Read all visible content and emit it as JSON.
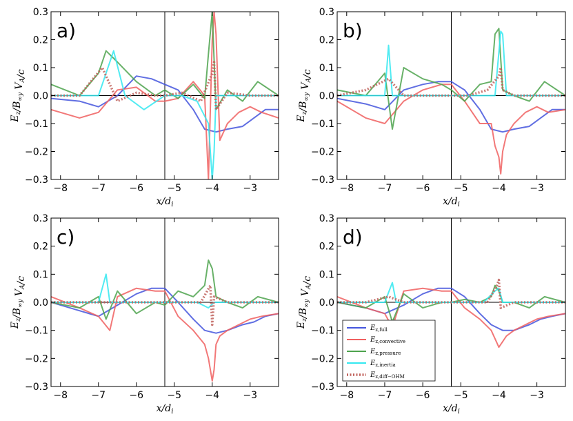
{
  "colors": {
    "full": "#4455dd",
    "convective": "#f06060",
    "pressure": "#4da34d",
    "inertia": "#33e8f0",
    "diff_ohm": "#c0605a"
  },
  "chart_data": [
    {
      "type": "line",
      "panel_label": "a)",
      "xlabel": "x/d_i",
      "ylabel": "E_z/B_∞y V_A/c",
      "xlim": [
        -8.25,
        -2.25
      ],
      "ylim": [
        -0.3,
        0.3
      ],
      "xticks": [
        "−8",
        "−7",
        "−6",
        "−5",
        "−4",
        "−3"
      ],
      "yticks": [
        "−0.3",
        "−0.2",
        "−0.1",
        "0.0",
        "0.1",
        "0.2",
        "0.3"
      ],
      "vline_x": -5.25,
      "series": [
        {
          "name": "E_z,full",
          "x": [
            -8.25,
            -7.5,
            -7,
            -6.5,
            -6,
            -5.6,
            -5.25,
            -4.9,
            -4.5,
            -4.2,
            -3.9,
            -3.6,
            -3.2,
            -2.9,
            -2.6,
            -2.25
          ],
          "values": [
            -0.01,
            -0.02,
            -0.04,
            0.0,
            0.07,
            0.06,
            0.04,
            0.02,
            -0.05,
            -0.12,
            -0.13,
            -0.12,
            -0.11,
            -0.08,
            -0.05,
            -0.05
          ]
        },
        {
          "name": "E_z,convective",
          "x": [
            -8.25,
            -7.5,
            -7,
            -6.5,
            -6,
            -5.5,
            -5.25,
            -4.9,
            -4.5,
            -4.2,
            -4.1,
            -4,
            -3.95,
            -3.9,
            -3.8,
            -3.6,
            -3.3,
            -3,
            -2.7,
            -2.25
          ],
          "values": [
            -0.05,
            -0.08,
            -0.06,
            0.02,
            0.03,
            -0.02,
            -0.02,
            -0.01,
            0.05,
            0.0,
            -0.3,
            0.2,
            0.3,
            0.22,
            -0.16,
            -0.1,
            -0.06,
            -0.04,
            -0.06,
            -0.08
          ]
        },
        {
          "name": "E_z,pressure",
          "x": [
            -8.25,
            -7.5,
            -7,
            -6.8,
            -6.5,
            -6,
            -5.5,
            -5.25,
            -4.9,
            -4.5,
            -4.2,
            -4.1,
            -4,
            -3.9,
            -3.6,
            -3.2,
            -2.8,
            -2.25
          ],
          "values": [
            0.04,
            0.0,
            0.08,
            0.16,
            0.12,
            0.05,
            0.0,
            0.02,
            -0.01,
            0.04,
            -0.01,
            0.15,
            0.3,
            -0.05,
            0.02,
            -0.02,
            0.05,
            0.0
          ]
        },
        {
          "name": "E_z,inertia",
          "x": [
            -8.25,
            -7,
            -6.6,
            -6.3,
            -5.8,
            -5.25,
            -4.8,
            -4.4,
            -4.1,
            -4,
            -3.95,
            -3.9,
            -3.6,
            -3,
            -2.25
          ],
          "values": [
            0.0,
            0.0,
            0.16,
            0.0,
            -0.05,
            0.0,
            0.0,
            -0.02,
            -0.1,
            -0.3,
            -0.2,
            0.0,
            0.0,
            0.0,
            0.0
          ]
        },
        {
          "name": "E_z,diff−OHM",
          "x": [
            -8.25,
            -7.5,
            -6.9,
            -6.5,
            -6,
            -5.5,
            -5.25,
            -4.8,
            -4.3,
            -4,
            -3.95,
            -3.9,
            -3.6,
            -3,
            -2.25
          ],
          "values": [
            0.0,
            0.0,
            0.1,
            -0.02,
            0.01,
            0.0,
            0.0,
            0.01,
            -0.02,
            0.08,
            0.12,
            -0.05,
            0.01,
            0.0,
            0.0
          ]
        }
      ]
    },
    {
      "type": "line",
      "panel_label": "b)",
      "xlabel": "x/d_i",
      "ylabel": "E_z/B_∞y V_A/c",
      "xlim": [
        -8.25,
        -2.25
      ],
      "ylim": [
        -0.3,
        0.3
      ],
      "xticks": [
        "−8",
        "−7",
        "−6",
        "−5",
        "−4",
        "−3"
      ],
      "yticks": [
        "−0.3",
        "−0.2",
        "−0.1",
        "0.0",
        "0.1",
        "0.2",
        "0.3"
      ],
      "vline_x": -5.25,
      "series": [
        {
          "name": "E_z,full",
          "x": [
            -8.25,
            -7.5,
            -7,
            -6.5,
            -6,
            -5.6,
            -5.25,
            -4.9,
            -4.5,
            -4.2,
            -3.9,
            -3.6,
            -3.2,
            -2.9,
            -2.6,
            -2.25
          ],
          "values": [
            -0.01,
            -0.03,
            -0.05,
            0.02,
            0.04,
            0.05,
            0.05,
            0.02,
            -0.05,
            -0.12,
            -0.13,
            -0.12,
            -0.11,
            -0.08,
            -0.05,
            -0.05
          ]
        },
        {
          "name": "E_z,convective",
          "x": [
            -8.25,
            -7.5,
            -7,
            -6.5,
            -6,
            -5.5,
            -5.25,
            -4.9,
            -4.5,
            -4.2,
            -4.1,
            -4,
            -3.95,
            -3.9,
            -3.8,
            -3.6,
            -3.3,
            -3,
            -2.7,
            -2.25
          ],
          "values": [
            -0.02,
            -0.08,
            -0.1,
            -0.02,
            0.02,
            0.04,
            0.04,
            -0.02,
            -0.1,
            -0.1,
            -0.18,
            -0.22,
            -0.28,
            -0.2,
            -0.14,
            -0.1,
            -0.06,
            -0.04,
            -0.06,
            -0.05
          ]
        },
        {
          "name": "E_z,pressure",
          "x": [
            -8.25,
            -7.5,
            -7,
            -6.8,
            -6.5,
            -6,
            -5.5,
            -5.25,
            -4.9,
            -4.5,
            -4.2,
            -4.1,
            -4,
            -3.9,
            -3.6,
            -3.2,
            -2.8,
            -2.25
          ],
          "values": [
            0.02,
            0.0,
            0.08,
            -0.12,
            0.1,
            0.06,
            0.04,
            0.02,
            -0.02,
            0.04,
            0.05,
            0.22,
            0.24,
            0.02,
            0.0,
            -0.02,
            0.05,
            0.0
          ]
        },
        {
          "name": "E_z,inertia",
          "x": [
            -8.25,
            -7,
            -6.9,
            -6.8,
            -6.3,
            -5.8,
            -5.25,
            -4.8,
            -4.4,
            -4.1,
            -3.95,
            -3.9,
            -3.8,
            -3.6,
            -3,
            -2.25
          ],
          "values": [
            0.0,
            0.0,
            0.18,
            0.0,
            0.0,
            0.0,
            0.0,
            0.0,
            0.0,
            0.0,
            0.23,
            0.22,
            0.0,
            0.0,
            0.0,
            0.0
          ]
        },
        {
          "name": "E_z,diff−OHM",
          "x": [
            -8.25,
            -7.5,
            -6.9,
            -6.5,
            -6,
            -5.5,
            -5.25,
            -4.8,
            -4.3,
            -4,
            -3.95,
            -3.9,
            -3.6,
            -3,
            -2.25
          ],
          "values": [
            0.0,
            0.02,
            0.06,
            0.0,
            0.0,
            0.0,
            0.0,
            0.0,
            0.02,
            0.07,
            0.1,
            0.02,
            0.0,
            0.0,
            0.0
          ]
        }
      ]
    },
    {
      "type": "line",
      "panel_label": "c)",
      "xlabel": "x/d_i",
      "ylabel": "E_z/B_∞y V_A/c",
      "xlim": [
        -8.25,
        -2.25
      ],
      "ylim": [
        -0.3,
        0.3
      ],
      "xticks": [
        "−8",
        "−7",
        "−6",
        "−5",
        "−4",
        "−3"
      ],
      "yticks": [
        "−0.3",
        "−0.2",
        "−0.1",
        "0.0",
        "0.1",
        "0.2",
        "0.3"
      ],
      "vline_x": -5.25,
      "series": [
        {
          "name": "E_z,full",
          "x": [
            -8.25,
            -7.5,
            -7,
            -6.5,
            -6,
            -5.6,
            -5.25,
            -4.9,
            -4.5,
            -4.2,
            -3.9,
            -3.6,
            -3.2,
            -2.9,
            -2.6,
            -2.25
          ],
          "values": [
            0.0,
            -0.03,
            -0.05,
            -0.01,
            0.03,
            0.05,
            0.05,
            0.0,
            -0.06,
            -0.1,
            -0.11,
            -0.1,
            -0.08,
            -0.07,
            -0.05,
            -0.04
          ]
        },
        {
          "name": "E_z,convective",
          "x": [
            -8.25,
            -7.5,
            -7,
            -6.7,
            -6.5,
            -6,
            -5.5,
            -5.25,
            -4.9,
            -4.5,
            -4.2,
            -4.1,
            -4,
            -3.95,
            -3.9,
            -3.8,
            -3.6,
            -3.3,
            -3,
            -2.7,
            -2.25
          ],
          "values": [
            0.02,
            -0.02,
            -0.05,
            -0.1,
            0.02,
            0.05,
            0.04,
            0.04,
            -0.05,
            -0.1,
            -0.15,
            -0.2,
            -0.28,
            -0.24,
            -0.15,
            -0.12,
            -0.1,
            -0.08,
            -0.06,
            -0.05,
            -0.04
          ]
        },
        {
          "name": "E_z,pressure",
          "x": [
            -8.25,
            -7.5,
            -7,
            -6.8,
            -6.5,
            -6,
            -5.5,
            -5.25,
            -4.9,
            -4.5,
            -4.2,
            -4.1,
            -4,
            -3.9,
            -3.6,
            -3.2,
            -2.8,
            -2.25
          ],
          "values": [
            0.0,
            -0.02,
            0.02,
            -0.06,
            0.04,
            -0.04,
            0.0,
            -0.01,
            0.04,
            0.02,
            0.06,
            0.15,
            0.12,
            0.02,
            0.0,
            -0.02,
            0.02,
            0.0
          ]
        },
        {
          "name": "E_z,inertia",
          "x": [
            -8.25,
            -7,
            -6.8,
            -6.7,
            -6.3,
            -5.8,
            -5.25,
            -4.8,
            -4.4,
            -4.1,
            -3.95,
            -3.6,
            -3,
            -2.25
          ],
          "values": [
            0.0,
            0.0,
            0.1,
            0.0,
            0.0,
            0.0,
            0.0,
            0.0,
            0.0,
            -0.02,
            0.0,
            0.0,
            0.0,
            0.0
          ]
        },
        {
          "name": "E_z,diff−OHM",
          "x": [
            -8.25,
            -7.5,
            -6.9,
            -6.5,
            -6,
            -5.5,
            -5.25,
            -4.8,
            -4.3,
            -4.05,
            -4,
            -3.95,
            -3.6,
            -3,
            -2.25
          ],
          "values": [
            0.0,
            0.0,
            0.0,
            0.0,
            0.0,
            0.0,
            0.0,
            0.0,
            0.0,
            0.06,
            -0.08,
            0.02,
            0.0,
            0.0,
            0.0
          ]
        }
      ]
    },
    {
      "type": "line",
      "panel_label": "d)",
      "xlabel": "x/d_i",
      "ylabel": "E_z/B_∞y V_A/c",
      "xlim": [
        -8.25,
        -2.25
      ],
      "ylim": [
        -0.3,
        0.3
      ],
      "xticks": [
        "−8",
        "−7",
        "−6",
        "−5",
        "−4",
        "−3"
      ],
      "yticks": [
        "−0.3",
        "−0.2",
        "−0.1",
        "0.0",
        "0.1",
        "0.2",
        "0.3"
      ],
      "vline_x": -5.25,
      "legend": {
        "placement": "lower-left",
        "entries": [
          "E_z,full",
          "E_z,convective",
          "E_z,pressure",
          "E_z,inertia",
          "E_z,diff−OHM"
        ]
      },
      "series": [
        {
          "name": "E_z,full",
          "x": [
            -8.25,
            -7.5,
            -7,
            -6.5,
            -6,
            -5.6,
            -5.25,
            -4.9,
            -4.5,
            -4.2,
            -3.9,
            -3.6,
            -3.2,
            -2.9,
            -2.6,
            -2.25
          ],
          "values": [
            0.0,
            -0.02,
            -0.04,
            -0.01,
            0.03,
            0.05,
            0.05,
            0.02,
            -0.04,
            -0.08,
            -0.1,
            -0.1,
            -0.08,
            -0.06,
            -0.05,
            -0.04
          ]
        },
        {
          "name": "E_z,convective",
          "x": [
            -8.25,
            -7.5,
            -7,
            -6.8,
            -6.5,
            -6,
            -5.5,
            -5.25,
            -4.9,
            -4.5,
            -4.2,
            -4,
            -3.9,
            -3.8,
            -3.6,
            -3.3,
            -3,
            -2.7,
            -2.25
          ],
          "values": [
            0.02,
            -0.02,
            -0.04,
            -0.09,
            0.04,
            0.05,
            0.04,
            0.04,
            -0.02,
            -0.06,
            -0.1,
            -0.16,
            -0.14,
            -0.12,
            -0.1,
            -0.08,
            -0.06,
            -0.05,
            -0.04
          ]
        },
        {
          "name": "E_z,pressure",
          "x": [
            -8.25,
            -7.5,
            -7,
            -6.8,
            -6.5,
            -6,
            -5.5,
            -5.25,
            -4.9,
            -4.5,
            -4.2,
            -4.1,
            -4,
            -3.9,
            -3.6,
            -3.2,
            -2.8,
            -2.25
          ],
          "values": [
            0.0,
            -0.02,
            0.02,
            -0.07,
            0.03,
            -0.02,
            0.0,
            0.0,
            0.01,
            0.0,
            0.02,
            0.06,
            0.04,
            0.0,
            0.0,
            -0.02,
            0.02,
            0.0
          ]
        },
        {
          "name": "E_z,inertia",
          "x": [
            -8.25,
            -7,
            -6.8,
            -6.7,
            -6.3,
            -5.8,
            -5.25,
            -4.8,
            -4.4,
            -4.1,
            -4,
            -3.9,
            -3.6,
            -3,
            -2.25
          ],
          "values": [
            0.0,
            0.0,
            0.07,
            0.0,
            0.0,
            0.0,
            0.0,
            0.0,
            0.0,
            0.04,
            0.05,
            0.0,
            0.0,
            0.0,
            0.0
          ]
        },
        {
          "name": "E_z,diff−OHM",
          "x": [
            -8.25,
            -7.5,
            -6.9,
            -6.5,
            -6,
            -5.5,
            -5.25,
            -4.8,
            -4.3,
            -4.05,
            -4,
            -3.95,
            -3.6,
            -3,
            -2.25
          ],
          "values": [
            0.0,
            0.0,
            0.02,
            0.0,
            0.0,
            0.0,
            0.0,
            0.0,
            0.0,
            0.06,
            0.08,
            -0.02,
            0.0,
            0.0,
            0.0
          ]
        }
      ]
    }
  ]
}
